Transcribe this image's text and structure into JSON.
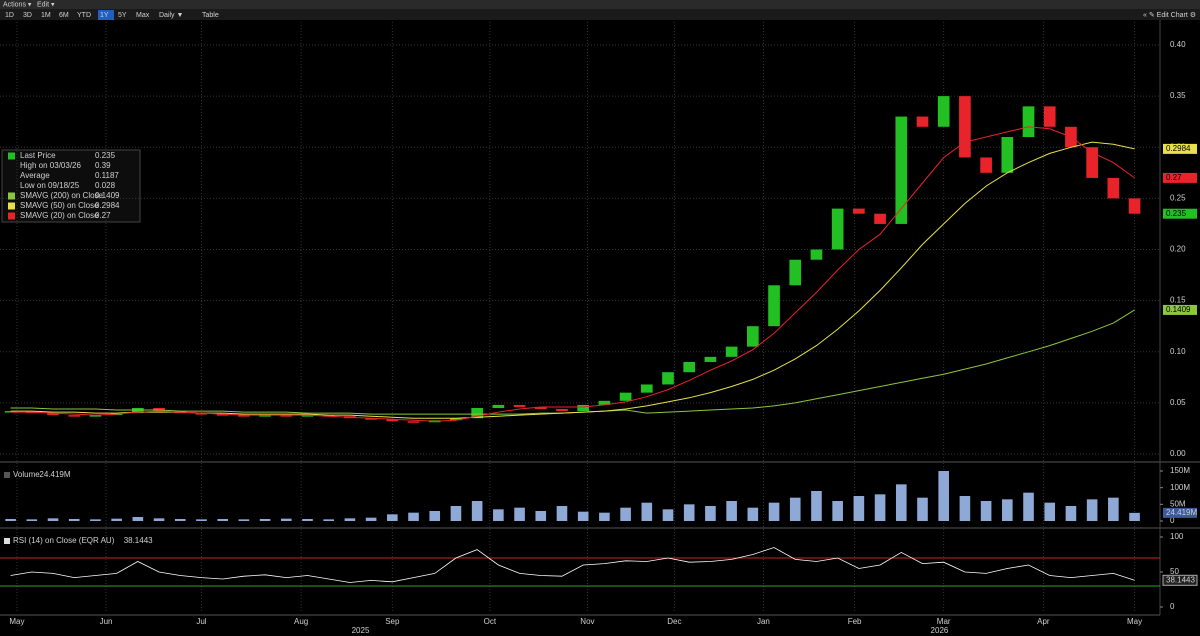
{
  "ui": {
    "menu": [
      "Actions ▾",
      "Edit ▾"
    ],
    "ranges": [
      "1D",
      "3D",
      "1M",
      "6M",
      "YTD",
      "1Y",
      "5Y",
      "Max",
      "Daily ▼",
      "Table"
    ],
    "active_range": "1Y",
    "edit_chart": "« ✎ Edit Chart ⚙"
  },
  "chart_data": [
    {
      "type": "candlestick",
      "up_color": "#22c022",
      "down_color": "#e8232a",
      "grid": true,
      "xlim": [
        -0.5,
        54.2
      ],
      "ylim": [
        0,
        0.4
      ],
      "yticks": [
        {
          "value": 0,
          "label": "0.00"
        },
        {
          "value": 0.05,
          "label": "0.05"
        },
        {
          "value": 0.1,
          "label": "0.10"
        },
        {
          "value": 0.15,
          "label": "0.15"
        },
        {
          "value": 0.2,
          "label": "0.20"
        },
        {
          "value": 0.25,
          "label": "0.25"
        },
        {
          "value": 0.3,
          "label": "0.30"
        },
        {
          "value": 0.35,
          "label": "0.35"
        },
        {
          "value": 0.4,
          "label": "0.40"
        }
      ],
      "stats": [
        {
          "label": "High on 03/03/26",
          "value": 0.39
        },
        {
          "label": "Average",
          "value": 0.1187
        },
        {
          "label": "Low on 09/18/25",
          "value": 0.028
        }
      ],
      "series": [
        {
          "name": "Last Price",
          "color": "#22c022",
          "values": [
            0.042,
            0.04,
            0.038,
            0.037,
            0.038,
            0.04,
            0.045,
            0.042,
            0.04,
            0.039,
            0.038,
            0.037,
            0.038,
            0.037,
            0.038,
            0.037,
            0.035,
            0.034,
            0.032,
            0.031,
            0.033,
            0.035,
            0.045,
            0.048,
            0.046,
            0.044,
            0.042,
            0.048,
            0.052,
            0.06,
            0.068,
            0.08,
            0.09,
            0.095,
            0.105,
            0.125,
            0.165,
            0.19,
            0.2,
            0.24,
            0.235,
            0.225,
            0.33,
            0.32,
            0.35,
            0.29,
            0.275,
            0.31,
            0.34,
            0.32,
            0.3,
            0.27,
            0.25,
            0.235
          ]
        },
        {
          "name": "SMAVG (200)  on Close",
          "color": "#8cc63f",
          "values": [
            0.045,
            0.045,
            0.044,
            0.044,
            0.044,
            0.043,
            0.043,
            0.043,
            0.042,
            0.042,
            0.042,
            0.041,
            0.041,
            0.041,
            0.04,
            0.04,
            0.04,
            0.039,
            0.039,
            0.039,
            0.039,
            0.039,
            0.039,
            0.039,
            0.039,
            0.04,
            0.04,
            0.041,
            0.042,
            0.043,
            0.04,
            0.041,
            0.042,
            0.043,
            0.044,
            0.045,
            0.047,
            0.05,
            0.054,
            0.058,
            0.062,
            0.066,
            0.07,
            0.074,
            0.078,
            0.083,
            0.088,
            0.094,
            0.1,
            0.106,
            0.113,
            0.12,
            0.128,
            0.1409
          ]
        },
        {
          "name": "SMAVG (50)  on Close",
          "color": "#e8e04a",
          "values": [
            0.042,
            0.042,
            0.041,
            0.041,
            0.04,
            0.04,
            0.041,
            0.041,
            0.041,
            0.04,
            0.04,
            0.039,
            0.039,
            0.039,
            0.039,
            0.038,
            0.038,
            0.037,
            0.036,
            0.035,
            0.035,
            0.035,
            0.036,
            0.037,
            0.038,
            0.039,
            0.04,
            0.041,
            0.042,
            0.044,
            0.047,
            0.051,
            0.055,
            0.06,
            0.066,
            0.073,
            0.082,
            0.093,
            0.106,
            0.122,
            0.14,
            0.16,
            0.182,
            0.205,
            0.225,
            0.245,
            0.262,
            0.275,
            0.285,
            0.294,
            0.3,
            0.305,
            0.303,
            0.2984
          ]
        },
        {
          "name": "SMAVG (20)  on Close",
          "color": "#e8232a",
          "values": [
            0.041,
            0.041,
            0.04,
            0.039,
            0.038,
            0.039,
            0.041,
            0.042,
            0.041,
            0.04,
            0.039,
            0.038,
            0.038,
            0.038,
            0.038,
            0.037,
            0.036,
            0.035,
            0.034,
            0.033,
            0.032,
            0.033,
            0.037,
            0.041,
            0.044,
            0.046,
            0.046,
            0.046,
            0.048,
            0.051,
            0.056,
            0.063,
            0.072,
            0.082,
            0.091,
            0.102,
            0.118,
            0.138,
            0.158,
            0.18,
            0.2,
            0.215,
            0.24,
            0.265,
            0.29,
            0.305,
            0.31,
            0.315,
            0.32,
            0.318,
            0.31,
            0.295,
            0.285,
            0.27
          ]
        }
      ]
    },
    {
      "type": "bar",
      "xlim": [
        -0.5,
        54.2
      ],
      "ylim": [
        0,
        150
      ],
      "yticks": [
        0,
        {
          "value": 50,
          "label": "50M"
        },
        {
          "value": 100,
          "label": "100M"
        },
        {
          "value": 150,
          "label": "150M"
        }
      ],
      "series": [
        {
          "name": "Volume",
          "color": "#8ea9d6",
          "values": [
            6,
            5,
            8,
            6,
            5,
            7,
            12,
            8,
            6,
            5,
            6,
            5,
            6,
            7,
            6,
            5,
            8,
            10,
            20,
            25,
            30,
            45,
            60,
            35,
            40,
            30,
            45,
            28,
            25,
            40,
            55,
            35,
            50,
            45,
            60,
            40,
            55,
            70,
            90,
            60,
            75,
            80,
            110,
            70,
            150,
            75,
            60,
            65,
            85,
            55,
            45,
            65,
            70,
            24.419
          ],
          "value_labels": [
            null,
            null,
            null,
            null,
            null,
            null,
            null,
            null,
            null,
            null,
            null,
            null,
            null,
            null,
            null,
            null,
            null,
            null,
            null,
            null,
            null,
            null,
            null,
            null,
            null,
            null,
            null,
            null,
            null,
            null,
            null,
            null,
            null,
            null,
            null,
            null,
            null,
            null,
            null,
            null,
            null,
            null,
            null,
            null,
            null,
            null,
            null,
            null,
            null,
            null,
            null,
            null,
            null,
            "24.419M"
          ]
        }
      ]
    },
    {
      "type": "line",
      "xlim": [
        -0.5,
        54.2
      ],
      "ylim": [
        0,
        100
      ],
      "yticks": [
        0,
        50,
        100
      ],
      "levels": [
        70,
        30
      ],
      "level_colors": [
        "#c0282a",
        "#2aa02a"
      ],
      "xticks": [
        {
          "value": 0.3,
          "label": "May"
        },
        {
          "value": 4.5,
          "label": "Jun"
        },
        {
          "value": 9.0,
          "label": "Jul"
        },
        {
          "value": 13.7,
          "label": "Aug"
        },
        {
          "value": 18.0,
          "label": "Sep"
        },
        {
          "value": 22.6,
          "label": "Oct"
        },
        {
          "value": 27.2,
          "label": "Nov"
        },
        {
          "value": 31.3,
          "label": "Dec"
        },
        {
          "value": 35.5,
          "label": "Jan"
        },
        {
          "value": 39.8,
          "label": "Feb"
        },
        {
          "value": 44.0,
          "label": "Mar"
        },
        {
          "value": 48.7,
          "label": "Apr"
        },
        {
          "value": 53.0,
          "label": "May"
        }
      ],
      "year_ticks": [
        {
          "value": 16.5,
          "label": "2025"
        },
        {
          "value": 43.8,
          "label": "2026"
        }
      ],
      "series": [
        {
          "name": "RSI (14)  on Close (EQR AU)",
          "color": "#ffffff",
          "values": [
            45,
            50,
            48,
            42,
            45,
            48,
            65,
            50,
            45,
            42,
            40,
            44,
            46,
            42,
            45,
            40,
            35,
            38,
            36,
            42,
            48,
            70,
            82,
            60,
            48,
            45,
            44,
            60,
            62,
            66,
            65,
            70,
            64,
            65,
            68,
            75,
            85,
            68,
            65,
            70,
            55,
            60,
            78,
            62,
            64,
            50,
            48,
            55,
            60,
            45,
            42,
            45,
            48,
            38.1443
          ]
        }
      ]
    }
  ]
}
